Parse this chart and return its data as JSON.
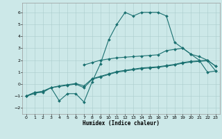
{
  "background_color": "#cce8e8",
  "grid_color": "#aacccc",
  "line_color": "#1a7070",
  "xlabel": "Humidex (Indice chaleur)",
  "xlim": [
    -0.5,
    23.5
  ],
  "ylim": [
    -2.5,
    6.8
  ],
  "xticks": [
    0,
    1,
    2,
    3,
    4,
    5,
    6,
    7,
    8,
    9,
    10,
    11,
    12,
    13,
    14,
    15,
    16,
    17,
    18,
    19,
    20,
    21,
    22,
    23
  ],
  "yticks": [
    -2,
    -1,
    0,
    1,
    2,
    3,
    4,
    5,
    6
  ],
  "curve_main_x": [
    0,
    1,
    2,
    3,
    4,
    5,
    6,
    7,
    8,
    9,
    10,
    11,
    12,
    13,
    14,
    15,
    16,
    17,
    18,
    19,
    20,
    21,
    22,
    23
  ],
  "curve_main_y": [
    -1,
    -0.7,
    -0.7,
    -0.3,
    -1.4,
    -0.8,
    -0.8,
    -1.5,
    0.2,
    1.7,
    3.7,
    5.0,
    6.0,
    5.7,
    6.0,
    6.0,
    6.0,
    5.7,
    3.5,
    3.0,
    2.5,
    2.0,
    1.0,
    1.1
  ],
  "curve_low1_x": [
    0,
    1,
    2,
    3,
    4,
    5,
    6,
    7,
    8,
    9,
    10,
    11,
    12,
    13,
    14,
    15,
    16,
    17,
    18,
    19,
    20,
    21,
    22,
    23
  ],
  "curve_low1_y": [
    -1,
    -0.7,
    -0.6,
    -0.3,
    -0.2,
    -0.1,
    0.0,
    -0.3,
    0.4,
    0.6,
    0.8,
    1.0,
    1.1,
    1.2,
    1.3,
    1.35,
    1.4,
    1.5,
    1.6,
    1.75,
    1.85,
    1.9,
    1.95,
    1.1
  ],
  "curve_low2_x": [
    0,
    1,
    2,
    3,
    4,
    5,
    6,
    7,
    8,
    9,
    10,
    11,
    12,
    13,
    14,
    15,
    16,
    17,
    18,
    19,
    20,
    21,
    22,
    23
  ],
  "curve_low2_y": [
    -1,
    -0.8,
    -0.6,
    -0.3,
    -0.15,
    -0.05,
    0.05,
    -0.15,
    0.45,
    0.65,
    0.85,
    1.05,
    1.15,
    1.25,
    1.35,
    1.4,
    1.45,
    1.55,
    1.65,
    1.8,
    1.9,
    1.95,
    2.0,
    1.5
  ],
  "curve_upper_x": [
    7,
    8,
    9,
    10,
    11,
    12,
    13,
    14,
    15,
    16,
    17,
    18,
    19,
    20,
    21,
    22,
    23
  ],
  "curve_upper_y": [
    1.6,
    1.8,
    2.0,
    2.1,
    2.2,
    2.25,
    2.3,
    2.35,
    2.4,
    2.45,
    2.8,
    2.9,
    3.0,
    2.5,
    2.3,
    2.0,
    1.5
  ]
}
